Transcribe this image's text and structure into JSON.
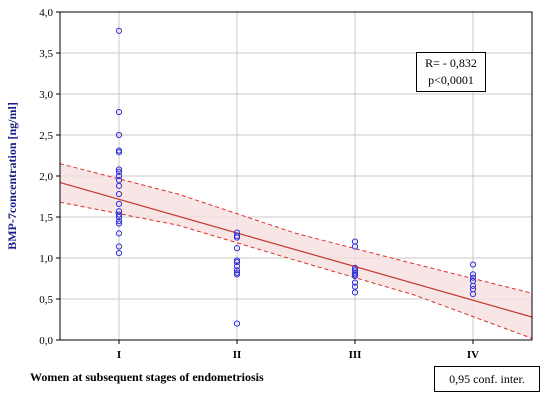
{
  "chart_data": {
    "type": "scatter",
    "xlabel": "Women at subsequent stages of endometriosis",
    "ylabel": "BMP-7concentration  [ng/ml]",
    "categories": [
      "I",
      "II",
      "III",
      "IV"
    ],
    "y_ticks": [
      "0,0",
      "0,5",
      "1,0",
      "1,5",
      "2,0",
      "2,5",
      "3,0",
      "3,5",
      "4,0"
    ],
    "ylim": [
      0,
      4
    ],
    "grid": true,
    "points": [
      {
        "x": "I",
        "y": 3.77
      },
      {
        "x": "I",
        "y": 2.78
      },
      {
        "x": "I",
        "y": 2.5
      },
      {
        "x": "I",
        "y": 2.31
      },
      {
        "x": "I",
        "y": 2.29
      },
      {
        "x": "I",
        "y": 2.08
      },
      {
        "x": "I",
        "y": 2.05
      },
      {
        "x": "I",
        "y": 2.0
      },
      {
        "x": "I",
        "y": 1.95
      },
      {
        "x": "I",
        "y": 1.88
      },
      {
        "x": "I",
        "y": 1.78
      },
      {
        "x": "I",
        "y": 1.66
      },
      {
        "x": "I",
        "y": 1.57
      },
      {
        "x": "I",
        "y": 1.53
      },
      {
        "x": "I",
        "y": 1.5
      },
      {
        "x": "I",
        "y": 1.45
      },
      {
        "x": "I",
        "y": 1.42
      },
      {
        "x": "I",
        "y": 1.3
      },
      {
        "x": "I",
        "y": 1.14
      },
      {
        "x": "I",
        "y": 1.06
      },
      {
        "x": "II",
        "y": 1.31
      },
      {
        "x": "II",
        "y": 1.27
      },
      {
        "x": "II",
        "y": 1.25
      },
      {
        "x": "II",
        "y": 1.12
      },
      {
        "x": "II",
        "y": 0.97
      },
      {
        "x": "II",
        "y": 0.95
      },
      {
        "x": "II",
        "y": 0.9
      },
      {
        "x": "II",
        "y": 0.85
      },
      {
        "x": "II",
        "y": 0.82
      },
      {
        "x": "II",
        "y": 0.8
      },
      {
        "x": "II",
        "y": 0.2
      },
      {
        "x": "III",
        "y": 1.2
      },
      {
        "x": "III",
        "y": 1.14
      },
      {
        "x": "III",
        "y": 0.88
      },
      {
        "x": "III",
        "y": 0.85
      },
      {
        "x": "III",
        "y": 0.82
      },
      {
        "x": "III",
        "y": 0.8
      },
      {
        "x": "III",
        "y": 0.78
      },
      {
        "x": "III",
        "y": 0.7
      },
      {
        "x": "III",
        "y": 0.65
      },
      {
        "x": "III",
        "y": 0.58
      },
      {
        "x": "IV",
        "y": 0.92
      },
      {
        "x": "IV",
        "y": 0.8
      },
      {
        "x": "IV",
        "y": 0.76
      },
      {
        "x": "IV",
        "y": 0.72
      },
      {
        "x": "IV",
        "y": 0.66
      },
      {
        "x": "IV",
        "y": 0.62
      },
      {
        "x": "IV",
        "y": 0.56
      }
    ],
    "regression": {
      "x": [
        0.5,
        4.5
      ],
      "y": [
        1.92,
        0.28
      ]
    },
    "ci_upper": {
      "x": [
        0.5,
        1.5,
        2.5,
        3.5,
        4.5
      ],
      "y": [
        2.15,
        1.78,
        1.3,
        0.93,
        0.57
      ]
    },
    "ci_lower": {
      "x": [
        0.5,
        1.5,
        2.5,
        3.5,
        4.5
      ],
      "y": [
        1.68,
        1.4,
        0.97,
        0.55,
        0.02
      ]
    },
    "annotation": {
      "r": "R= - 0,832",
      "p": "p<0,0001"
    },
    "legend": "0,95 conf. inter.",
    "colors": {
      "points": "#2f2fd6",
      "regression": "#c0392b",
      "ci": "#d9302b",
      "band": "#f6dede",
      "grid": "#c8c8c8",
      "axis": "#000000"
    }
  }
}
